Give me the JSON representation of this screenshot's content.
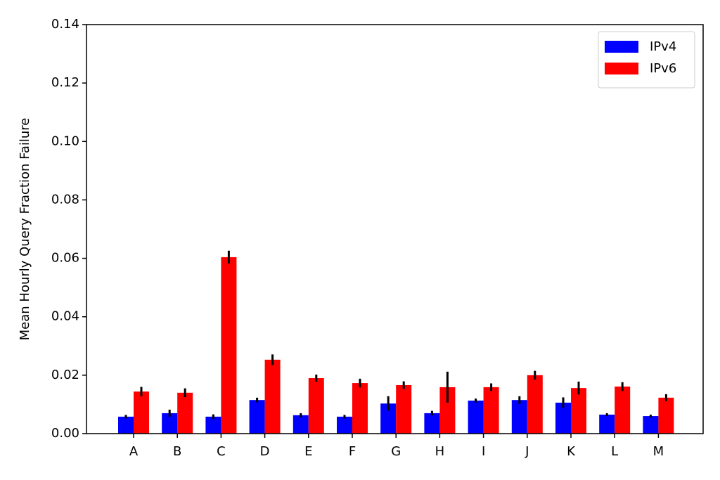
{
  "chart_data": {
    "type": "bar",
    "ylabel": "Mean Hourly Query Fraction Failure",
    "categories": [
      "A",
      "B",
      "C",
      "D",
      "E",
      "F",
      "G",
      "H",
      "I",
      "J",
      "K",
      "L",
      "M"
    ],
    "series": [
      {
        "name": "IPv4",
        "color": "#0000ff",
        "values": [
          0.0058,
          0.007,
          0.0058,
          0.0115,
          0.0063,
          0.0058,
          0.0103,
          0.007,
          0.0113,
          0.0115,
          0.0106,
          0.0065,
          0.006
        ],
        "errors": [
          0.0006,
          0.0012,
          0.0008,
          0.0008,
          0.0007,
          0.0006,
          0.0025,
          0.0008,
          0.0007,
          0.0013,
          0.0018,
          0.0005,
          0.0005
        ]
      },
      {
        "name": "IPv6",
        "color": "#ff0000",
        "values": [
          0.0144,
          0.014,
          0.0604,
          0.0253,
          0.019,
          0.0173,
          0.0166,
          0.0159,
          0.0159,
          0.02,
          0.0156,
          0.0161,
          0.0123
        ],
        "errors": [
          0.0016,
          0.0015,
          0.0022,
          0.0018,
          0.0012,
          0.0015,
          0.0013,
          0.0053,
          0.0013,
          0.0015,
          0.0022,
          0.0015,
          0.0012
        ]
      }
    ],
    "ylim": [
      0,
      0.14
    ],
    "yticks": [
      {
        "value": 0,
        "label": "0.00"
      },
      {
        "value": 0.02,
        "label": "0.02"
      },
      {
        "value": 0.04,
        "label": "0.04"
      },
      {
        "value": 0.06,
        "label": "0.06"
      },
      {
        "value": 0.08,
        "label": "0.08"
      },
      {
        "value": 0.1,
        "label": "0.10"
      },
      {
        "value": 0.12,
        "label": "0.12"
      },
      {
        "value": 0.14,
        "label": "0.14"
      }
    ],
    "grid": false,
    "legend": "upper right"
  }
}
